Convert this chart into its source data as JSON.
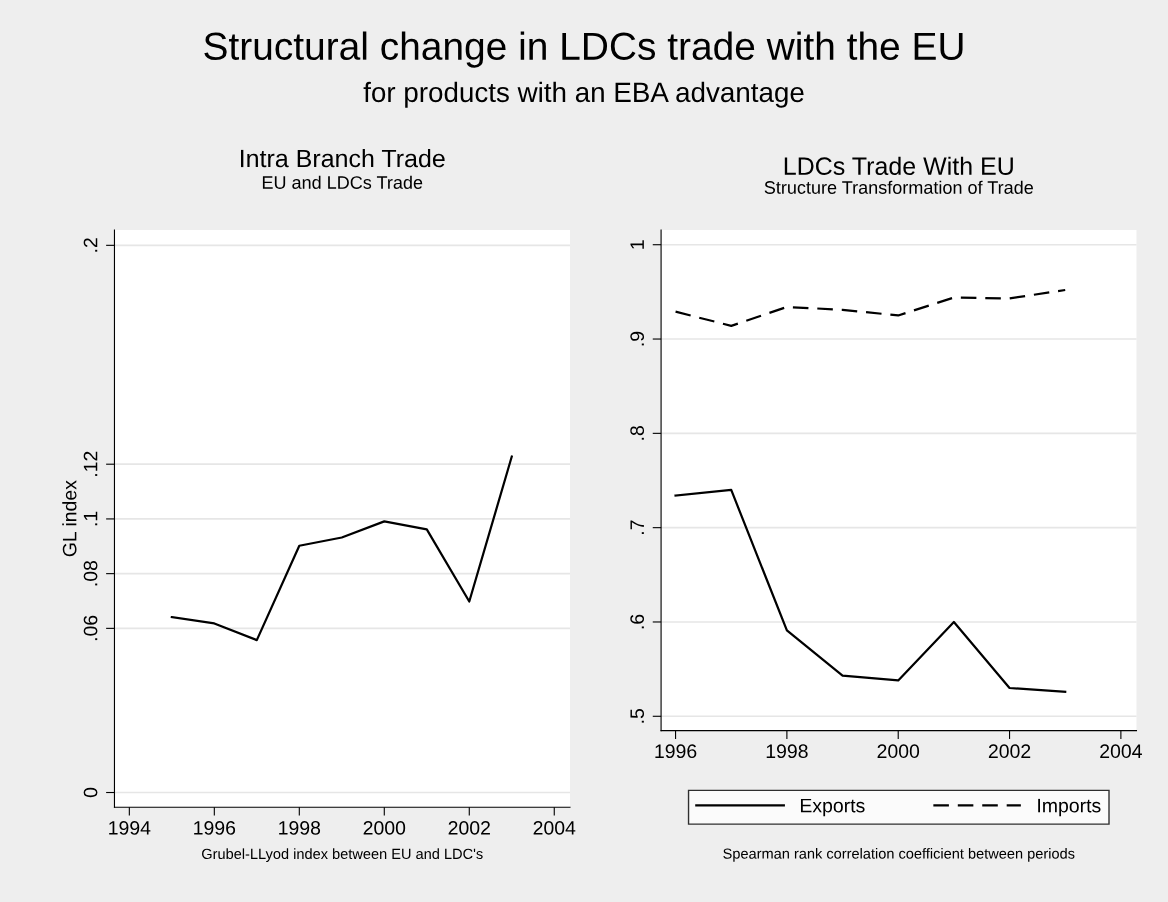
{
  "chart_data": [
    {
      "type": "line",
      "title": "Intra Branch Trade",
      "subtitle": "EU and LDCs Trade",
      "ylabel": "GL index",
      "xlabel": "Grubel-LLyod index between EU and LDC's",
      "annotations": [
        "Structural change in LDCs trade with the EU",
        "for products with an EBA advantage"
      ],
      "x": [
        1995,
        1996,
        1997,
        1998,
        1999,
        2000,
        2001,
        2002,
        2003
      ],
      "series": [
        {
          "color": "#000000",
          "values": [
            0.0641,
            0.0618,
            0.0557,
            0.0902,
            0.0932,
            0.0991,
            0.0962,
            0.0698,
            0.1228
          ],
          "line_style": "solid"
        }
      ],
      "xlim": [
        1993.65,
        2004.37
      ],
      "ylim": [
        -0.0054,
        0.2056
      ],
      "xticks": [
        1994,
        1996,
        1998,
        2000,
        2002,
        2004
      ],
      "yticks": [
        {
          "value": 0,
          "label": "0"
        },
        {
          "value": 0.06,
          "label": ".06"
        },
        {
          "value": 0.08,
          "label": ".08"
        },
        {
          "value": 0.1,
          "label": ".1"
        },
        {
          "value": 0.12,
          "label": ".12"
        },
        {
          "value": 0.2,
          "label": ".2"
        }
      ],
      "grid": "y",
      "legend": false
    },
    {
      "type": "line",
      "title": "LDCs Trade With EU",
      "subtitle": "Structure Transformation of Trade",
      "xlabel": "Spearman rank correlation coefficient between periods",
      "x": [
        1996,
        1997,
        1998,
        1999,
        2000,
        2001,
        2002,
        2003
      ],
      "series": [
        {
          "name": "Exports",
          "color": "#000000",
          "line_style": "solid",
          "values": [
            0.734,
            0.74,
            0.591,
            0.543,
            0.538,
            0.6,
            0.53,
            0.526
          ]
        },
        {
          "name": "Imports",
          "color": "#000000",
          "line_style": "dashed",
          "values": [
            0.929,
            0.914,
            0.934,
            0.931,
            0.925,
            0.944,
            0.943,
            0.952
          ]
        }
      ],
      "xlim": [
        1995.74,
        2004.28
      ],
      "ylim": [
        0.4848,
        1.0156
      ],
      "xticks": [
        1996,
        1998,
        2000,
        2002,
        2004
      ],
      "yticks": [
        {
          "value": 0.5,
          "label": ".5"
        },
        {
          "value": 0.6,
          "label": ".6"
        },
        {
          "value": 0.7,
          "label": ".7"
        },
        {
          "value": 0.8,
          "label": ".8"
        },
        {
          "value": 0.9,
          "label": ".9"
        },
        {
          "value": 1,
          "label": "1"
        }
      ],
      "grid": "y",
      "legend": "bottom"
    }
  ]
}
